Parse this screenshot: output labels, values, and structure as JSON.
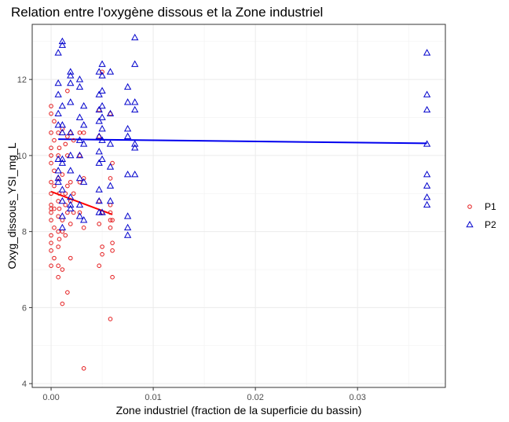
{
  "chart_data": {
    "type": "scatter",
    "title": "Relation entre l'oxygène dissous et la Zone industriel",
    "xlabel": "Zone industriel (fraction de la superficie du bassin)",
    "ylabel": "Oxyg_dissous_YSI_mg_L",
    "xlim": [
      -0.00185,
      0.0386
    ],
    "ylim": [
      3.9,
      13.45
    ],
    "x_ticks": [
      0.0,
      0.01,
      0.02,
      0.03
    ],
    "x_tick_labels": [
      "0.00",
      "0.01",
      "0.02",
      "0.03"
    ],
    "y_ticks": [
      4,
      6,
      8,
      10,
      12
    ],
    "y_tick_labels": [
      "4",
      "6",
      "8",
      "10",
      "12"
    ],
    "grid": true,
    "legend_position": "right",
    "series": [
      {
        "name": "P1",
        "color": "#e41a1c",
        "marker": "circle",
        "points": [
          [
            0.0,
            11.3
          ],
          [
            0.0,
            11.1
          ],
          [
            0.0,
            10.6
          ],
          [
            0.0,
            10.2
          ],
          [
            0.0,
            10.0
          ],
          [
            0.0,
            9.8
          ],
          [
            0.0,
            9.3
          ],
          [
            0.0,
            9.0
          ],
          [
            0.0,
            8.7
          ],
          [
            0.0,
            8.6
          ],
          [
            0.0,
            8.5
          ],
          [
            0.0,
            8.3
          ],
          [
            0.0,
            7.9
          ],
          [
            0.0,
            7.7
          ],
          [
            0.0,
            7.5
          ],
          [
            0.0,
            7.1
          ],
          [
            0.0003,
            10.9
          ],
          [
            0.0003,
            10.4
          ],
          [
            0.0003,
            9.6
          ],
          [
            0.0003,
            9.2
          ],
          [
            0.0003,
            8.6
          ],
          [
            0.0003,
            8.1
          ],
          [
            0.0003,
            7.3
          ],
          [
            0.0007,
            10.6
          ],
          [
            0.0007,
            10.0
          ],
          [
            0.0007,
            9.4
          ],
          [
            0.0007,
            8.8
          ],
          [
            0.0007,
            8.4
          ],
          [
            0.0007,
            8.0
          ],
          [
            0.0007,
            7.6
          ],
          [
            0.0007,
            7.1
          ],
          [
            0.0007,
            6.8
          ],
          [
            0.0008,
            10.2
          ],
          [
            0.0008,
            9.0
          ],
          [
            0.0008,
            8.6
          ],
          [
            0.0008,
            7.8
          ],
          [
            0.0011,
            10.7
          ],
          [
            0.0011,
            9.5
          ],
          [
            0.0011,
            8.3
          ],
          [
            0.0011,
            8.0
          ],
          [
            0.0011,
            7.0
          ],
          [
            0.0011,
            6.1
          ],
          [
            0.0014,
            10.3
          ],
          [
            0.0014,
            9.0
          ],
          [
            0.0014,
            8.7
          ],
          [
            0.0014,
            7.9
          ],
          [
            0.0016,
            11.7
          ],
          [
            0.0016,
            10.5
          ],
          [
            0.0016,
            10.0
          ],
          [
            0.0016,
            9.2
          ],
          [
            0.0016,
            8.5
          ],
          [
            0.0016,
            6.4
          ],
          [
            0.0019,
            10.6
          ],
          [
            0.0019,
            9.3
          ],
          [
            0.0019,
            8.8
          ],
          [
            0.0019,
            8.2
          ],
          [
            0.0019,
            7.3
          ],
          [
            0.0022,
            10.4
          ],
          [
            0.0022,
            9.0
          ],
          [
            0.0022,
            8.5
          ],
          [
            0.0028,
            10.6
          ],
          [
            0.0028,
            10.0
          ],
          [
            0.0028,
            9.3
          ],
          [
            0.0028,
            8.5
          ],
          [
            0.0032,
            10.6
          ],
          [
            0.0032,
            9.4
          ],
          [
            0.0032,
            8.1
          ],
          [
            0.0032,
            4.4
          ],
          [
            0.0047,
            11.2
          ],
          [
            0.0047,
            10.5
          ],
          [
            0.0047,
            8.8
          ],
          [
            0.0047,
            8.2
          ],
          [
            0.0047,
            7.1
          ],
          [
            0.005,
            12.2
          ],
          [
            0.005,
            8.5
          ],
          [
            0.005,
            7.6
          ],
          [
            0.005,
            7.4
          ],
          [
            0.0058,
            11.1
          ],
          [
            0.0058,
            9.4
          ],
          [
            0.0058,
            8.7
          ],
          [
            0.0058,
            8.5
          ],
          [
            0.0058,
            8.3
          ],
          [
            0.0058,
            8.1
          ],
          [
            0.0058,
            5.7
          ],
          [
            0.006,
            9.8
          ],
          [
            0.006,
            8.3
          ],
          [
            0.006,
            7.7
          ],
          [
            0.006,
            7.5
          ],
          [
            0.006,
            6.8
          ]
        ]
      },
      {
        "name": "P2",
        "color": "#0000cc",
        "marker": "triangle",
        "points": [
          [
            0.0007,
            12.7
          ],
          [
            0.0007,
            11.9
          ],
          [
            0.0007,
            11.6
          ],
          [
            0.0007,
            11.1
          ],
          [
            0.0007,
            10.8
          ],
          [
            0.0007,
            9.9
          ],
          [
            0.0007,
            9.6
          ],
          [
            0.0007,
            9.4
          ],
          [
            0.0007,
            9.3
          ],
          [
            0.0011,
            13.0
          ],
          [
            0.0011,
            12.9
          ],
          [
            0.0011,
            11.3
          ],
          [
            0.0011,
            10.8
          ],
          [
            0.0011,
            10.6
          ],
          [
            0.0011,
            9.9
          ],
          [
            0.0011,
            9.8
          ],
          [
            0.0011,
            9.1
          ],
          [
            0.0011,
            8.8
          ],
          [
            0.0011,
            8.4
          ],
          [
            0.0011,
            8.1
          ],
          [
            0.0019,
            12.2
          ],
          [
            0.0019,
            12.1
          ],
          [
            0.0019,
            11.9
          ],
          [
            0.0019,
            11.4
          ],
          [
            0.0019,
            10.6
          ],
          [
            0.0019,
            10.0
          ],
          [
            0.0019,
            9.6
          ],
          [
            0.0019,
            8.9
          ],
          [
            0.0019,
            8.7
          ],
          [
            0.0019,
            8.6
          ],
          [
            0.0028,
            12.0
          ],
          [
            0.0028,
            11.8
          ],
          [
            0.0028,
            11.0
          ],
          [
            0.0028,
            10.4
          ],
          [
            0.0028,
            10.0
          ],
          [
            0.0028,
            9.4
          ],
          [
            0.0028,
            8.7
          ],
          [
            0.0028,
            8.4
          ],
          [
            0.0032,
            11.3
          ],
          [
            0.0032,
            10.8
          ],
          [
            0.0032,
            10.3
          ],
          [
            0.0032,
            9.3
          ],
          [
            0.0032,
            8.3
          ],
          [
            0.0047,
            12.2
          ],
          [
            0.0047,
            11.6
          ],
          [
            0.0047,
            11.2
          ],
          [
            0.0047,
            10.9
          ],
          [
            0.0047,
            10.5
          ],
          [
            0.0047,
            10.1
          ],
          [
            0.0047,
            9.8
          ],
          [
            0.0047,
            9.1
          ],
          [
            0.0047,
            8.8
          ],
          [
            0.0047,
            8.5
          ],
          [
            0.005,
            12.4
          ],
          [
            0.005,
            12.1
          ],
          [
            0.005,
            11.7
          ],
          [
            0.005,
            11.3
          ],
          [
            0.005,
            11.0
          ],
          [
            0.005,
            10.7
          ],
          [
            0.005,
            10.4
          ],
          [
            0.005,
            9.9
          ],
          [
            0.005,
            8.5
          ],
          [
            0.0058,
            12.2
          ],
          [
            0.0058,
            11.1
          ],
          [
            0.0058,
            10.3
          ],
          [
            0.0058,
            9.7
          ],
          [
            0.0058,
            9.2
          ],
          [
            0.0058,
            8.8
          ],
          [
            0.0075,
            11.8
          ],
          [
            0.0075,
            11.4
          ],
          [
            0.0075,
            10.7
          ],
          [
            0.0075,
            10.5
          ],
          [
            0.0075,
            9.5
          ],
          [
            0.0075,
            8.4
          ],
          [
            0.0075,
            8.1
          ],
          [
            0.0075,
            7.9
          ],
          [
            0.0082,
            13.1
          ],
          [
            0.0082,
            12.4
          ],
          [
            0.0082,
            11.4
          ],
          [
            0.0082,
            11.2
          ],
          [
            0.0082,
            10.3
          ],
          [
            0.0082,
            10.2
          ],
          [
            0.0082,
            9.5
          ],
          [
            0.0368,
            12.7
          ],
          [
            0.0368,
            11.6
          ],
          [
            0.0368,
            11.2
          ],
          [
            0.0368,
            10.3
          ],
          [
            0.0368,
            9.5
          ],
          [
            0.0368,
            9.2
          ],
          [
            0.0368,
            8.9
          ],
          [
            0.0368,
            8.7
          ]
        ]
      }
    ],
    "trend_lines": [
      {
        "series": "P1",
        "color": "#ff0000",
        "x": [
          0.0,
          0.006
        ],
        "y": [
          9.05,
          8.45
        ]
      },
      {
        "series": "P2",
        "color": "#0000ee",
        "x": [
          0.0007,
          0.0368
        ],
        "y": [
          10.43,
          10.32
        ]
      }
    ]
  }
}
